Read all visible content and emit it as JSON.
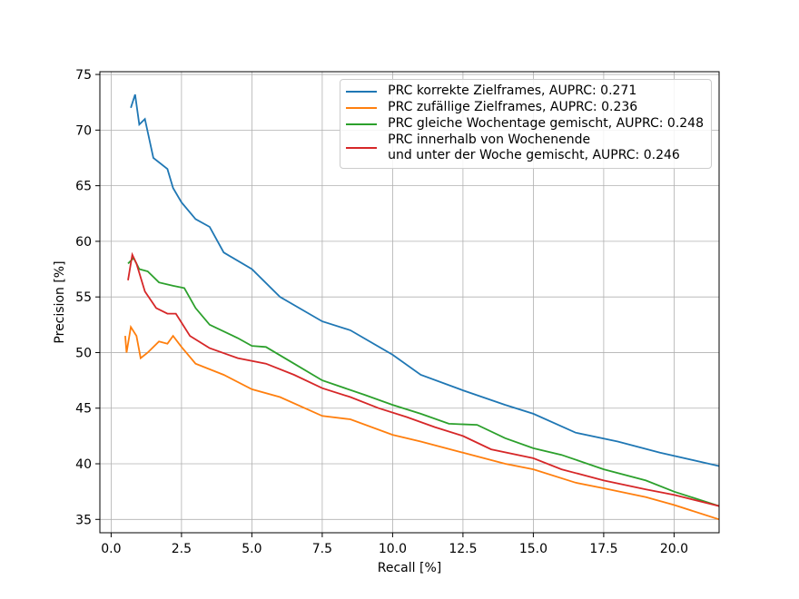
{
  "chart_data": {
    "type": "line",
    "x_label": "Recall [%]",
    "y_label": "Precision [%]",
    "xlim": [
      -0.4,
      21.6
    ],
    "ylim": [
      33.8,
      75.25
    ],
    "xticks": [
      {
        "value": 0,
        "label": "0.0"
      },
      2.5,
      {
        "value": 5,
        "label": "5.0"
      },
      7.5,
      {
        "value": 10,
        "label": "10.0"
      },
      12.5,
      {
        "value": 15,
        "label": "15.0"
      },
      17.5,
      {
        "value": 20,
        "label": "20.0"
      }
    ],
    "yticks": [
      35,
      40,
      45,
      50,
      55,
      60,
      65,
      70,
      75
    ],
    "grid": true,
    "legend": "upper right",
    "series": [
      {
        "name": "PRC korrekte Zielframes, AUPRC: 0.271",
        "color": "#1f77b4",
        "x": [
          0.7,
          0.85,
          1.0,
          1.2,
          1.5,
          2.0,
          2.2,
          2.5,
          3.0,
          3.5,
          4.0,
          5.0,
          6.0,
          7.5,
          8.5,
          10,
          11,
          12.5,
          14,
          15,
          16.5,
          18,
          19.5,
          21.6
        ],
        "values": [
          72,
          73.2,
          70.5,
          71,
          67.5,
          66.5,
          64.8,
          63.5,
          62,
          61.3,
          59,
          57.5,
          55,
          52.8,
          52,
          49.8,
          48,
          46.6,
          45.3,
          44.5,
          42.8,
          42,
          41,
          39.8
        ]
      },
      {
        "name": "PRC zufällige Zielframes, AUPRC: 0.236",
        "color": "#ff7f0e",
        "x": [
          0.5,
          0.55,
          0.7,
          0.9,
          1.05,
          1.3,
          1.7,
          2.0,
          2.2,
          2.5,
          3.0,
          4.0,
          5.0,
          6.0,
          7.5,
          8.5,
          10,
          11,
          12.5,
          14,
          15,
          16.5,
          17.5,
          19,
          20,
          21.6
        ],
        "values": [
          51.5,
          50,
          52.3,
          51.5,
          49.5,
          50,
          51,
          50.8,
          51.5,
          50.5,
          49,
          48,
          46.7,
          46,
          44.3,
          44,
          42.6,
          42,
          41,
          40,
          39.5,
          38.3,
          37.8,
          37,
          36.3,
          35.0
        ]
      },
      {
        "name": "PRC gleiche Wochentage gemischt, AUPRC: 0.248",
        "color": "#2ca02c",
        "x": [
          0.6,
          0.8,
          1.0,
          1.3,
          1.7,
          2.2,
          2.6,
          3.0,
          3.5,
          4.5,
          5.0,
          5.5,
          6.5,
          7.5,
          9,
          10,
          11,
          12,
          13,
          14,
          15,
          16,
          17.5,
          19,
          20,
          21.6
        ],
        "values": [
          58,
          58.5,
          57.5,
          57.3,
          56.3,
          56,
          55.8,
          54,
          52.5,
          51.3,
          50.6,
          50.5,
          49,
          47.5,
          46.2,
          45.3,
          44.5,
          43.6,
          43.5,
          42.3,
          41.4,
          40.8,
          39.5,
          38.5,
          37.5,
          36.2
        ]
      },
      {
        "name": "PRC innerhalb von Wochenende\nund unter der Woche gemischt, AUPRC: 0.246",
        "color": "#d62728",
        "x": [
          0.6,
          0.75,
          0.9,
          1.2,
          1.6,
          2.0,
          2.3,
          2.8,
          3.5,
          4.5,
          5.5,
          6.5,
          7.5,
          8.5,
          9.5,
          10.5,
          11.5,
          12.5,
          13.5,
          15,
          16,
          17.5,
          19,
          20,
          21.6
        ],
        "values": [
          56.5,
          58.8,
          58,
          55.5,
          54,
          53.5,
          53.5,
          51.5,
          50.4,
          49.5,
          49,
          48,
          46.8,
          46,
          45,
          44.2,
          43.3,
          42.5,
          41.3,
          40.5,
          39.5,
          38.5,
          37.7,
          37.2,
          36.2
        ]
      }
    ]
  }
}
